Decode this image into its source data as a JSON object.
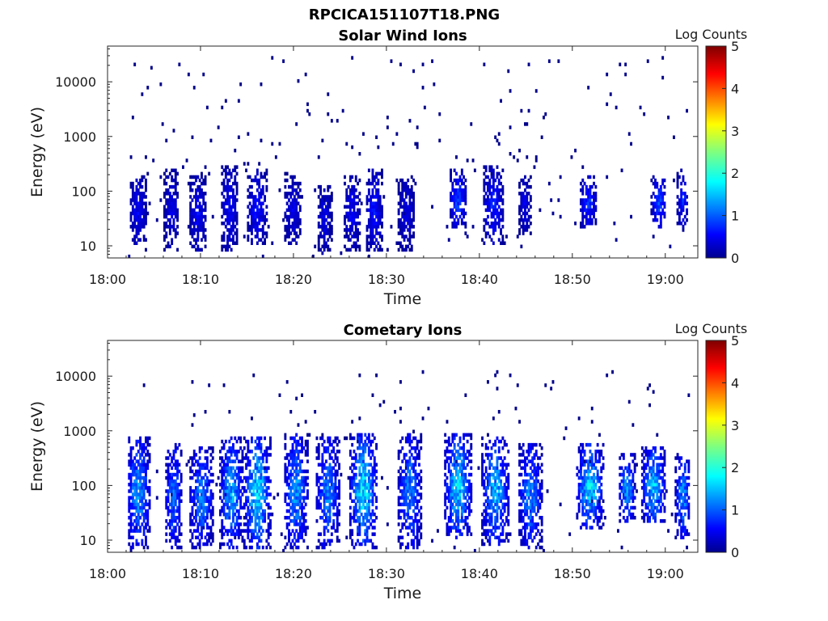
{
  "figure_title": "RPCICA151107T18.PNG",
  "colors": {
    "background_mark": "#00008f",
    "colormap": [
      "#00008f",
      "#0000ff",
      "#007fff",
      "#00ffff",
      "#7fff7f",
      "#ffff00",
      "#ff7f00",
      "#ff0000",
      "#7f0000"
    ]
  },
  "chart_data": [
    {
      "type": "heatmap",
      "title": "Solar Wind Ions",
      "xlabel": "Time",
      "ylabel": "Energy (eV)",
      "x_ticks": [
        "18:00",
        "18:10",
        "18:20",
        "18:30",
        "18:40",
        "18:50",
        "19:00"
      ],
      "x_range_minutes": [
        0,
        63.5
      ],
      "y_scale": "log",
      "y_ticks": [
        "10",
        "100",
        "1000",
        "10000"
      ],
      "y_range": [
        6,
        45000
      ],
      "colorbar": {
        "label": "Log Counts",
        "range": [
          0,
          5
        ],
        "ticks": [
          "0",
          "1",
          "2",
          "3",
          "4",
          "5"
        ]
      },
      "data_start_minutes": 2.2,
      "data_end_minutes": 62.3,
      "bursts": [
        {
          "t": 3.2,
          "w": 0.6,
          "lo": 10,
          "hi": 200,
          "peak": 0.7
        },
        {
          "t": 6.8,
          "w": 0.5,
          "lo": 8,
          "hi": 250,
          "peak": 0.6
        },
        {
          "t": 9.6,
          "w": 0.6,
          "lo": 8,
          "hi": 200,
          "peak": 0.7
        },
        {
          "t": 13.0,
          "w": 0.6,
          "lo": 8,
          "hi": 300,
          "peak": 0.7
        },
        {
          "t": 16.0,
          "w": 0.7,
          "lo": 10,
          "hi": 250,
          "peak": 0.8
        },
        {
          "t": 19.8,
          "w": 0.6,
          "lo": 10,
          "hi": 200,
          "peak": 0.6
        },
        {
          "t": 23.2,
          "w": 0.5,
          "lo": 7,
          "hi": 150,
          "peak": 0.6
        },
        {
          "t": 26.2,
          "w": 0.6,
          "lo": 8,
          "hi": 200,
          "peak": 0.7
        },
        {
          "t": 28.6,
          "w": 0.6,
          "lo": 8,
          "hi": 250,
          "peak": 0.8
        },
        {
          "t": 32.0,
          "w": 0.6,
          "lo": 8,
          "hi": 200,
          "peak": 0.6
        },
        {
          "t": 37.6,
          "w": 0.6,
          "lo": 20,
          "hi": 250,
          "peak": 1.1
        },
        {
          "t": 41.4,
          "w": 0.7,
          "lo": 10,
          "hi": 300,
          "peak": 0.9
        },
        {
          "t": 44.8,
          "w": 0.4,
          "lo": 15,
          "hi": 200,
          "peak": 0.6
        },
        {
          "t": 51.6,
          "w": 0.6,
          "lo": 20,
          "hi": 200,
          "peak": 1.0
        },
        {
          "t": 59.2,
          "w": 0.5,
          "lo": 20,
          "hi": 200,
          "peak": 1.1
        },
        {
          "t": 61.8,
          "w": 0.4,
          "lo": 20,
          "hi": 250,
          "peak": 0.9
        }
      ],
      "scatter_band": [
        200,
        30000
      ]
    },
    {
      "type": "heatmap",
      "title": "Cometary Ions",
      "xlabel": "Time",
      "ylabel": "Energy (eV)",
      "x_ticks": [
        "18:00",
        "18:10",
        "18:20",
        "18:30",
        "18:40",
        "18:50",
        "19:00"
      ],
      "x_range_minutes": [
        0,
        63.5
      ],
      "y_scale": "log",
      "y_ticks": [
        "10",
        "100",
        "1000",
        "10000"
      ],
      "y_range": [
        6,
        45000
      ],
      "colorbar": {
        "label": "Log Counts",
        "range": [
          0,
          5
        ],
        "ticks": [
          "0",
          "1",
          "2",
          "3",
          "4",
          "5"
        ]
      },
      "data_start_minutes": 2.2,
      "data_end_minutes": 62.5,
      "bursts": [
        {
          "t": 3.2,
          "w": 0.8,
          "lo": 7,
          "hi": 800,
          "peak": 1.6
        },
        {
          "t": 7.0,
          "w": 0.6,
          "lo": 7,
          "hi": 600,
          "peak": 1.4
        },
        {
          "t": 10.0,
          "w": 0.8,
          "lo": 7,
          "hi": 500,
          "peak": 1.5
        },
        {
          "t": 13.2,
          "w": 0.8,
          "lo": 7,
          "hi": 800,
          "peak": 1.7
        },
        {
          "t": 16.0,
          "w": 0.9,
          "lo": 7,
          "hi": 800,
          "peak": 2.0
        },
        {
          "t": 20.2,
          "w": 0.8,
          "lo": 7,
          "hi": 900,
          "peak": 1.6
        },
        {
          "t": 23.6,
          "w": 0.8,
          "lo": 7,
          "hi": 800,
          "peak": 1.5
        },
        {
          "t": 27.4,
          "w": 0.9,
          "lo": 7,
          "hi": 900,
          "peak": 2.1
        },
        {
          "t": 32.4,
          "w": 0.8,
          "lo": 7,
          "hi": 900,
          "peak": 1.5
        },
        {
          "t": 37.6,
          "w": 0.9,
          "lo": 10,
          "hi": 900,
          "peak": 2.0
        },
        {
          "t": 41.6,
          "w": 0.9,
          "lo": 8,
          "hi": 800,
          "peak": 1.8
        },
        {
          "t": 45.4,
          "w": 0.8,
          "lo": 7,
          "hi": 600,
          "peak": 1.5
        },
        {
          "t": 51.8,
          "w": 0.9,
          "lo": 15,
          "hi": 600,
          "peak": 2.0
        },
        {
          "t": 55.8,
          "w": 0.6,
          "lo": 20,
          "hi": 400,
          "peak": 1.6
        },
        {
          "t": 58.6,
          "w": 0.8,
          "lo": 20,
          "hi": 500,
          "peak": 1.9
        },
        {
          "t": 61.8,
          "w": 0.5,
          "lo": 10,
          "hi": 400,
          "peak": 1.6
        }
      ],
      "scatter_band": [
        600,
        12000
      ]
    }
  ]
}
